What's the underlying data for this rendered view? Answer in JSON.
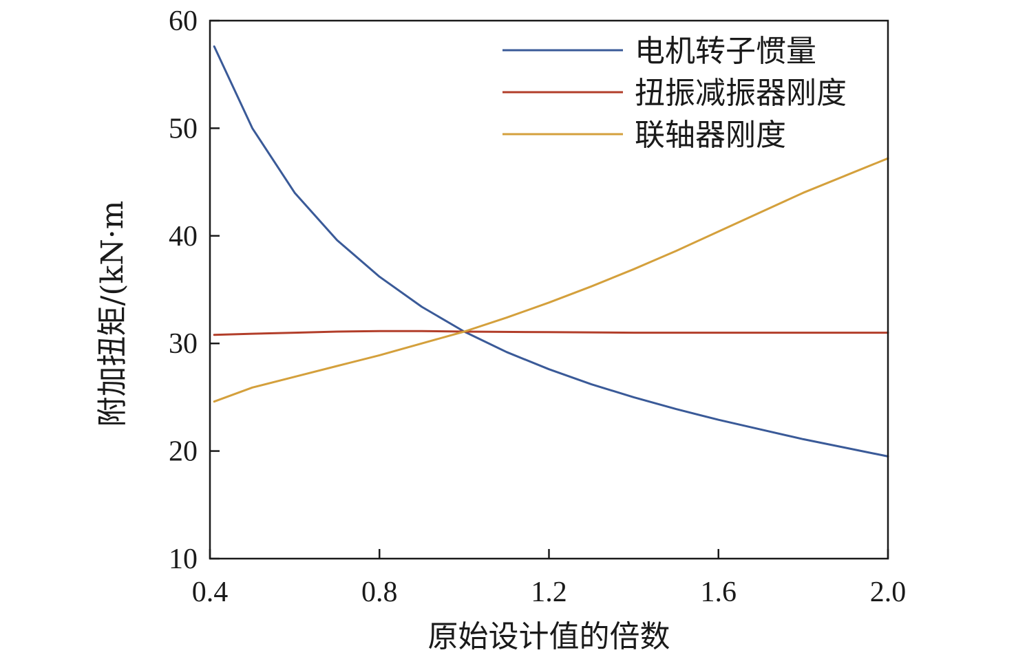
{
  "chart_data": {
    "type": "line",
    "title": "",
    "xlabel": "原始设计值的倍数",
    "ylabel": "附加扭矩/(kN·m",
    "xlim": [
      0.4,
      2.0
    ],
    "ylim": [
      10,
      60
    ],
    "x_ticks": [
      0.4,
      0.8,
      1.2,
      1.6,
      2.0
    ],
    "x_tick_labels": [
      "0.4",
      "0.8",
      "1.2",
      "1.6",
      "2.0"
    ],
    "y_ticks": [
      10,
      20,
      30,
      40,
      50,
      60
    ],
    "y_tick_labels": [
      "10",
      "20",
      "30",
      "40",
      "50",
      "60"
    ],
    "grid": false,
    "legend_position": "top-right",
    "series": [
      {
        "name": "电机转子惯量",
        "color": "#3a5a98",
        "x": [
          0.41,
          0.5,
          0.6,
          0.7,
          0.8,
          0.9,
          1.0,
          1.1,
          1.2,
          1.3,
          1.4,
          1.5,
          1.6,
          1.7,
          1.8,
          1.9,
          2.0
        ],
        "y": [
          57.6,
          50.0,
          44.0,
          39.6,
          36.2,
          33.4,
          31.1,
          29.2,
          27.6,
          26.2,
          25.0,
          23.9,
          22.9,
          22.0,
          21.1,
          20.3,
          19.5
        ]
      },
      {
        "name": "扭振减振器刚度",
        "color": "#b23e2a",
        "x": [
          0.41,
          0.5,
          0.6,
          0.7,
          0.8,
          0.9,
          1.0,
          1.2,
          1.4,
          1.6,
          1.8,
          2.0
        ],
        "y": [
          30.8,
          30.9,
          31.0,
          31.1,
          31.15,
          31.15,
          31.1,
          31.05,
          31.0,
          31.0,
          31.0,
          31.0
        ]
      },
      {
        "name": "联轴器刚度",
        "color": "#d4a03c",
        "x": [
          0.41,
          0.5,
          0.6,
          0.7,
          0.8,
          0.9,
          1.0,
          1.1,
          1.2,
          1.3,
          1.4,
          1.5,
          1.6,
          1.7,
          1.8,
          1.9,
          2.0
        ],
        "y": [
          24.6,
          25.9,
          26.9,
          27.9,
          28.9,
          30.0,
          31.1,
          32.4,
          33.8,
          35.3,
          36.9,
          38.6,
          40.4,
          42.2,
          44.0,
          45.6,
          47.2
        ]
      }
    ]
  }
}
